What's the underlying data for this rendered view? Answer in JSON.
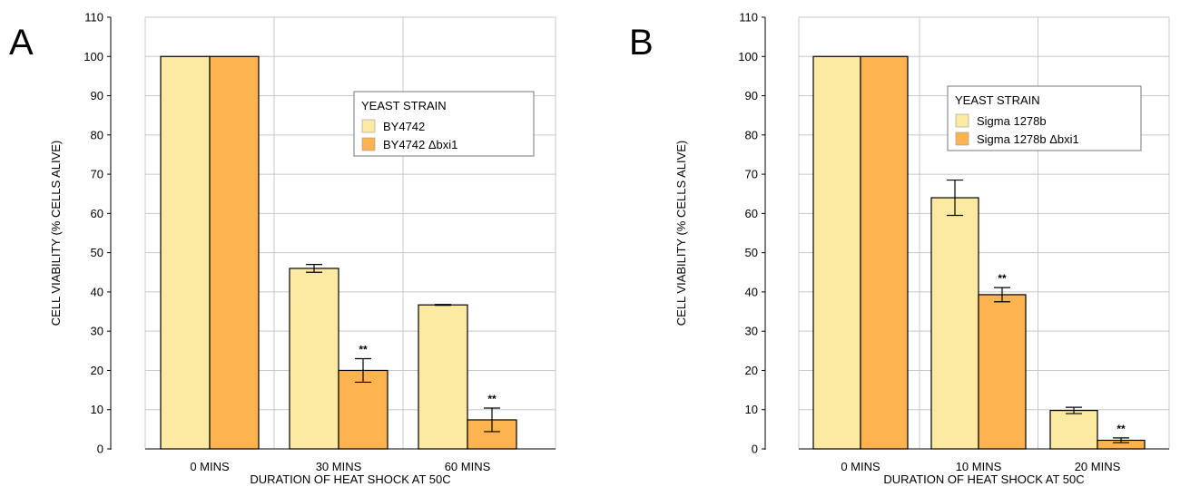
{
  "chart_data": [
    {
      "type": "bar",
      "panel": "A",
      "categories": [
        "0 MINS",
        "30 MINS",
        "60 MINS"
      ],
      "xlabel": "DURATION OF HEAT SHOCK AT 50C",
      "ylabel": "CELL VIABILITY (% CELLS ALIVE)",
      "ylim": [
        0,
        110
      ],
      "yticks": [
        0,
        10,
        20,
        30,
        40,
        50,
        60,
        70,
        80,
        90,
        100,
        110
      ],
      "grid": true,
      "legend": {
        "title": "YEAST STRAIN",
        "placement": "top-right"
      },
      "series": [
        {
          "name": "BY4742",
          "color": "#fdeaa2",
          "values": [
            100,
            46,
            36.7
          ],
          "errors": [
            0,
            1.0,
            0.1
          ],
          "significance": [
            "",
            "",
            ""
          ]
        },
        {
          "name": "BY4742 Δbxi1",
          "color": "#fdb34f",
          "values": [
            100,
            20,
            7.4
          ],
          "errors": [
            0,
            3.0,
            3.0
          ],
          "significance": [
            "",
            "**",
            "**"
          ]
        }
      ]
    },
    {
      "type": "bar",
      "panel": "B",
      "categories": [
        "0 MINS",
        "10 MINS",
        "20 MINS"
      ],
      "xlabel": "DURATION OF HEAT SHOCK AT 50C",
      "ylabel": "CELL VIABILITY (% CELLS ALIVE)",
      "ylim": [
        0,
        110
      ],
      "yticks": [
        0,
        10,
        20,
        30,
        40,
        50,
        60,
        70,
        80,
        90,
        100,
        110
      ],
      "grid": true,
      "legend": {
        "title": "YEAST STRAIN",
        "placement": "top-right"
      },
      "series": [
        {
          "name": "Sigma 1278b",
          "color": "#fdeaa2",
          "values": [
            100,
            64,
            9.8
          ],
          "errors": [
            0,
            4.5,
            0.8
          ],
          "significance": [
            "",
            "",
            ""
          ]
        },
        {
          "name": "Sigma 1278b Δbxi1",
          "color": "#fdb34f",
          "values": [
            100,
            39.3,
            2.2
          ],
          "errors": [
            0,
            1.8,
            0.6
          ],
          "significance": [
            "",
            "**",
            "**"
          ]
        }
      ]
    }
  ]
}
